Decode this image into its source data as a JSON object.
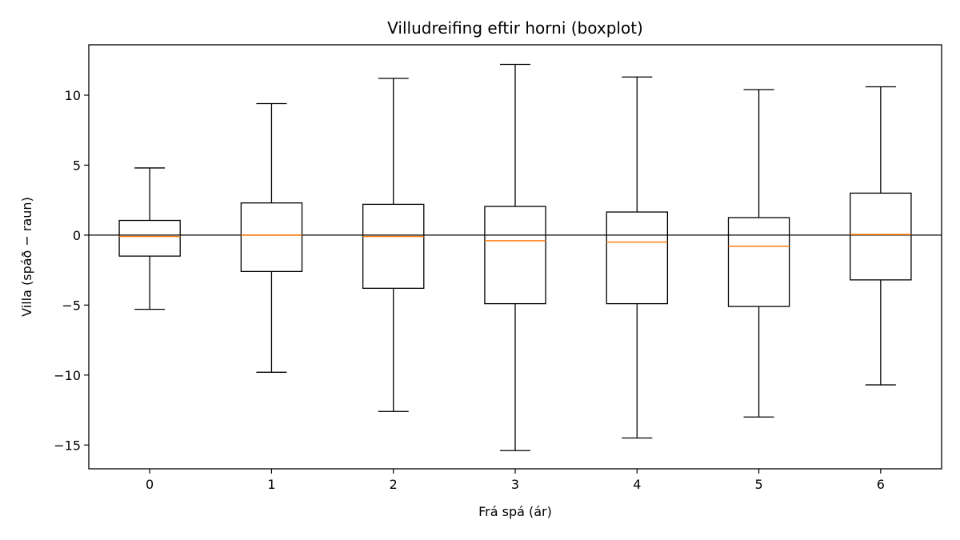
{
  "chart_data": {
    "type": "boxplot",
    "title": "Villudreifing eftir horni (boxplot)",
    "xlabel": "Frá spá (ár)",
    "ylabel": "Villa (spáð − raun)",
    "categories": [
      "0",
      "1",
      "2",
      "3",
      "4",
      "5",
      "6"
    ],
    "yticks": [
      -15,
      -10,
      -5,
      0,
      5,
      10
    ],
    "ytick_labels": [
      "−15",
      "−10",
      "−5",
      "0",
      "5",
      "10"
    ],
    "ylim": [
      -16.7,
      13.6
    ],
    "xlim": [
      -0.5,
      6.5
    ],
    "reference_line_y": 0,
    "grid": false,
    "colors": {
      "box": "#000000",
      "median": "#ff7f0e",
      "reference": "#000000"
    },
    "boxes": [
      {
        "category": "0",
        "whisker_low": -5.3,
        "q1": -1.5,
        "median": -0.1,
        "q3": 1.05,
        "whisker_high": 4.8
      },
      {
        "category": "1",
        "whisker_low": -9.8,
        "q1": -2.6,
        "median": 0.0,
        "q3": 2.3,
        "whisker_high": 9.4
      },
      {
        "category": "2",
        "whisker_low": -12.6,
        "q1": -3.8,
        "median": -0.1,
        "q3": 2.2,
        "whisker_high": 11.2
      },
      {
        "category": "3",
        "whisker_low": -15.4,
        "q1": -4.9,
        "median": -0.4,
        "q3": 2.05,
        "whisker_high": 12.2
      },
      {
        "category": "4",
        "whisker_low": -14.5,
        "q1": -4.9,
        "median": -0.5,
        "q3": 1.65,
        "whisker_high": 11.3
      },
      {
        "category": "5",
        "whisker_low": -13.0,
        "q1": -5.1,
        "median": -0.8,
        "q3": 1.25,
        "whisker_high": 10.4
      },
      {
        "category": "6",
        "whisker_low": -10.7,
        "q1": -3.2,
        "median": 0.05,
        "q3": 3.0,
        "whisker_high": 10.6
      }
    ]
  }
}
